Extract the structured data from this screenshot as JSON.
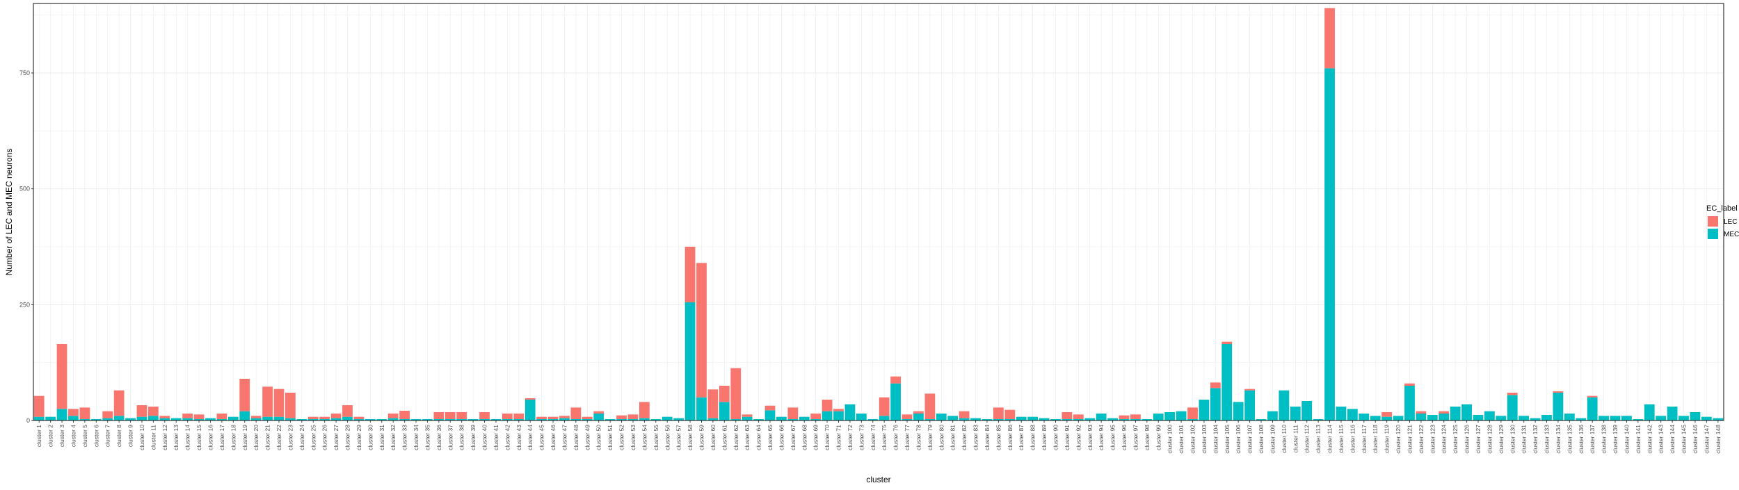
{
  "chart_data": {
    "type": "bar",
    "stacked": true,
    "xlabel": "cluster",
    "ylabel": "Number of LEC and MEC neurons",
    "ylim": [
      0,
      900
    ],
    "yticks": [
      0,
      250,
      500,
      750
    ],
    "grid": true,
    "legend": {
      "title": "EC_label",
      "position": "right"
    },
    "categories": [
      "cluster 1",
      "cluster 2",
      "cluster 3",
      "cluster 4",
      "cluster 5",
      "cluster 6",
      "cluster 7",
      "cluster 8",
      "cluster 9",
      "cluster 10",
      "cluster 11",
      "cluster 12",
      "cluster 13",
      "cluster 14",
      "cluster 15",
      "cluster 16",
      "cluster 17",
      "cluster 18",
      "cluster 19",
      "cluster 20",
      "cluster 21",
      "cluster 22",
      "cluster 23",
      "cluster 24",
      "cluster 25",
      "cluster 26",
      "cluster 27",
      "cluster 28",
      "cluster 29",
      "cluster 30",
      "cluster 31",
      "cluster 32",
      "cluster 33",
      "cluster 34",
      "cluster 35",
      "cluster 36",
      "cluster 37",
      "cluster 38",
      "cluster 39",
      "cluster 40",
      "cluster 41",
      "cluster 42",
      "cluster 43",
      "cluster 44",
      "cluster 45",
      "cluster 46",
      "cluster 47",
      "cluster 48",
      "cluster 49",
      "cluster 50",
      "cluster 51",
      "cluster 52",
      "cluster 53",
      "cluster 54",
      "cluster 55",
      "cluster 56",
      "cluster 57",
      "cluster 58",
      "cluster 59",
      "cluster 60",
      "cluster 61",
      "cluster 62",
      "cluster 63",
      "cluster 64",
      "cluster 65",
      "cluster 66",
      "cluster 67",
      "cluster 68",
      "cluster 69",
      "cluster 70",
      "cluster 71",
      "cluster 72",
      "cluster 73",
      "cluster 74",
      "cluster 75",
      "cluster 76",
      "cluster 77",
      "cluster 78",
      "cluster 79",
      "cluster 80",
      "cluster 81",
      "cluster 82",
      "cluster 83",
      "cluster 84",
      "cluster 85",
      "cluster 86",
      "cluster 87",
      "cluster 88",
      "cluster 89",
      "cluster 90",
      "cluster 91",
      "cluster 92",
      "cluster 93",
      "cluster 94",
      "cluster 95",
      "cluster 96",
      "cluster 97",
      "cluster 98",
      "cluster 99",
      "cluster 100",
      "cluster 101",
      "cluster 102",
      "cluster 103",
      "cluster 104",
      "cluster 105",
      "cluster 106",
      "cluster 107",
      "cluster 108",
      "cluster 109",
      "cluster 110",
      "cluster 111",
      "cluster 112",
      "cluster 113",
      "cluster 114",
      "cluster 115",
      "cluster 116",
      "cluster 117",
      "cluster 118",
      "cluster 119",
      "cluster 120",
      "cluster 121",
      "cluster 122",
      "cluster 123",
      "cluster 124",
      "cluster 125",
      "cluster 126",
      "cluster 127",
      "cluster 128",
      "cluster 129",
      "cluster 130",
      "cluster 131",
      "cluster 132",
      "cluster 133",
      "cluster 134",
      "cluster 135",
      "cluster 136",
      "cluster 137",
      "cluster 138",
      "cluster 139",
      "cluster 140",
      "cluster 141",
      "cluster 142",
      "cluster 143",
      "cluster 144",
      "cluster 145",
      "cluster 146",
      "cluster 147",
      "cluster 148"
    ],
    "series": [
      {
        "name": "MEC",
        "color": "#00BFC4",
        "values": [
          8,
          8,
          25,
          10,
          3,
          3,
          5,
          10,
          5,
          8,
          10,
          5,
          5,
          5,
          3,
          5,
          3,
          8,
          20,
          5,
          8,
          8,
          5,
          3,
          3,
          3,
          5,
          8,
          3,
          3,
          3,
          5,
          3,
          3,
          3,
          3,
          3,
          3,
          3,
          3,
          3,
          3,
          3,
          45,
          3,
          3,
          5,
          3,
          3,
          15,
          3,
          3,
          3,
          5,
          3,
          8,
          5,
          255,
          50,
          5,
          40,
          3,
          8,
          3,
          22,
          8,
          3,
          8,
          3,
          20,
          20,
          35,
          15,
          3,
          10,
          80,
          3,
          15,
          3,
          15,
          10,
          5,
          5,
          3,
          3,
          3,
          8,
          8,
          5,
          3,
          3,
          3,
          5,
          15,
          5,
          3,
          3,
          3,
          15,
          18,
          20,
          3,
          45,
          70,
          165,
          40,
          65,
          3,
          20,
          65,
          30,
          42,
          3,
          760,
          30,
          25,
          15,
          10,
          8,
          10,
          75,
          15,
          12,
          15,
          30,
          35,
          12,
          20,
          10,
          55,
          10,
          5,
          12,
          60,
          15,
          5,
          50,
          10,
          10,
          10,
          3,
          35,
          10,
          30,
          10,
          18,
          8,
          5
        ]
      },
      {
        "name": "LEC",
        "color": "#F8766D",
        "values": [
          45,
          0,
          140,
          15,
          25,
          0,
          15,
          55,
          0,
          25,
          20,
          5,
          0,
          10,
          10,
          0,
          12,
          0,
          70,
          5,
          65,
          60,
          55,
          0,
          5,
          5,
          10,
          25,
          5,
          0,
          0,
          10,
          18,
          0,
          0,
          15,
          15,
          15,
          0,
          15,
          0,
          12,
          12,
          3,
          5,
          5,
          5,
          25,
          5,
          5,
          0,
          8,
          10,
          35,
          0,
          0,
          0,
          120,
          290,
          62,
          35,
          110,
          5,
          0,
          10,
          0,
          25,
          0,
          12,
          25,
          5,
          0,
          0,
          0,
          40,
          15,
          10,
          5,
          55,
          0,
          0,
          15,
          0,
          0,
          25,
          20,
          0,
          0,
          0,
          0,
          15,
          10,
          0,
          0,
          0,
          8,
          10,
          0,
          0,
          0,
          0,
          25,
          0,
          12,
          5,
          0,
          3,
          0,
          0,
          0,
          0,
          0,
          0,
          130,
          0,
          0,
          0,
          0,
          10,
          0,
          5,
          5,
          0,
          5,
          0,
          0,
          0,
          0,
          0,
          5,
          0,
          0,
          0,
          3,
          0,
          0,
          3,
          0,
          0,
          0,
          0,
          0,
          0,
          0,
          0,
          0,
          0,
          0
        ]
      }
    ]
  }
}
